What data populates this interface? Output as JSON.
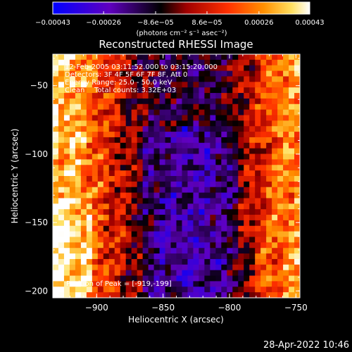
{
  "chart_data": {
    "type": "heatmap",
    "title": "Reconstructed RHESSI Image",
    "xlabel": "Heliocentric X (arcsec)",
    "ylabel": "Heliocentric Y (arcsec)",
    "xlim": [
      -933,
      -747
    ],
    "ylim": [
      -205,
      -27
    ],
    "xticks": [
      -900,
      -850,
      -800,
      -750
    ],
    "xtick_labels": [
      "−900",
      "−850",
      "−800",
      "−750"
    ],
    "yticks": [
      -50,
      -100,
      -150,
      -200
    ],
    "ytick_labels": [
      "−50",
      "−100",
      "−150",
      "−200"
    ],
    "colorbar": {
      "range": [
        -0.00043,
        0.00043
      ],
      "ticks": [
        -0.00043,
        -0.00026,
        -8.6e-05,
        8.6e-05,
        0.00026,
        0.00043
      ],
      "tick_labels": [
        "−0.00043",
        "−0.00026",
        "−8.6e−05",
        "8.6e−05",
        "0.00026",
        "0.00043"
      ],
      "unit_label": "(photons cm⁻² s⁻¹ asec⁻²)",
      "colormap": [
        "#0000ff",
        "#6000c0",
        "#000000",
        "#a00000",
        "#ff3000",
        "#ff9000",
        "#ffe060",
        "#ffffff"
      ]
    },
    "grid": false,
    "annotations": [
      "12-Feb-2005 03:11:52.000 to 03:15:20.000",
      "Detectors: 3F 4F 5F 6F 7F 8F, Att 0",
      "Energy Range: 25.0 - 50.0 keV",
      "Clean",
      "Total counts: 3.32E+03",
      "Position of Peak = [-919,-199]"
    ],
    "peak": {
      "x": -919,
      "y": -199
    }
  },
  "footer": {
    "timestamp": "28-Apr-2022 10:46"
  }
}
